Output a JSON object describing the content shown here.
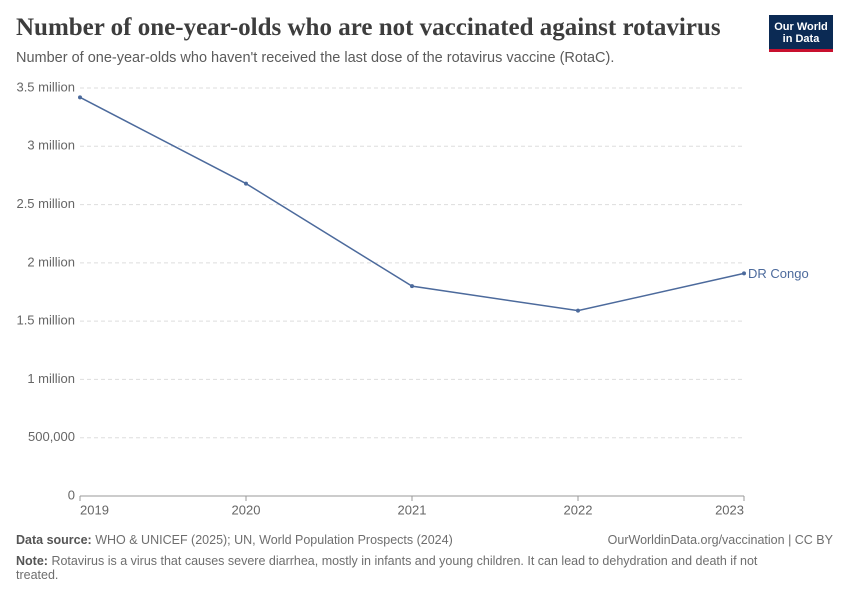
{
  "header": {
    "title": "Number of one-year-olds who are not vaccinated against rotavirus",
    "subtitle": "Number of one-year-olds who haven't received the last dose of the rotavirus vaccine (RotaC).",
    "logo": [
      "Our World",
      "in Data"
    ]
  },
  "chart_data": {
    "type": "line",
    "x": [
      2019,
      2020,
      2021,
      2022,
      2023
    ],
    "series": [
      {
        "name": "DR Congo",
        "color": "#4c6a9c",
        "values": [
          3420000,
          2680000,
          1800000,
          1590000,
          1910000
        ]
      }
    ],
    "xlim": [
      2019,
      2023
    ],
    "xticks": [
      2019,
      2020,
      2021,
      2022,
      2023
    ],
    "ylim": [
      0,
      3500000
    ],
    "yticks": [
      0,
      {
        "value": 500000,
        "label": "500,000"
      },
      {
        "value": 1000000,
        "label": "1 million"
      },
      {
        "value": 1500000,
        "label": "1.5 million"
      },
      {
        "value": 2000000,
        "label": "2 million"
      },
      {
        "value": 2500000,
        "label": "2.5 million"
      },
      {
        "value": 3000000,
        "label": "3 million"
      },
      {
        "value": 3500000,
        "label": "3.5 million"
      }
    ],
    "grid": true
  },
  "footer": {
    "source_label": "Data source:",
    "source": "WHO & UNICEF (2025); UN, World Population Prospects (2024)",
    "url": "OurWorldinData.org/vaccination | CC BY",
    "note_label": "Note:",
    "note": "Rotavirus is a virus that causes severe diarrhea, mostly in infants and young children. It can lead to dehydration and death if not treated."
  }
}
